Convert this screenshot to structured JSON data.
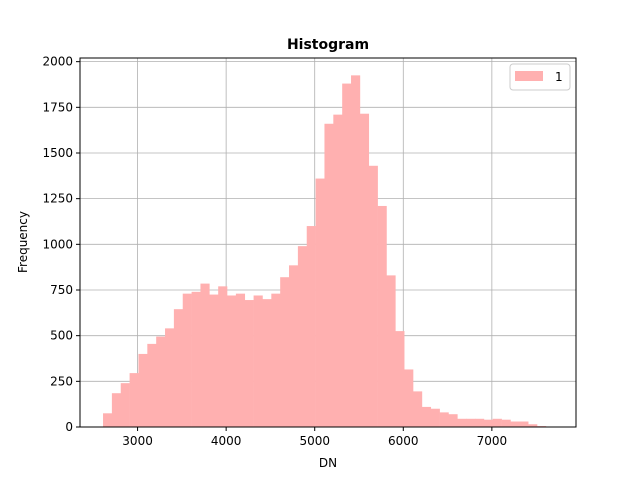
{
  "chart_data": {
    "type": "bar",
    "title": "Histogram",
    "xlabel": "DN",
    "ylabel": "Frequency",
    "xlim": [
      2350,
      7950
    ],
    "ylim": [
      0,
      2020
    ],
    "x_ticks": [
      3000,
      4000,
      5000,
      6000,
      7000
    ],
    "y_ticks": [
      0,
      250,
      500,
      750,
      1000,
      1250,
      1500,
      1750,
      2000
    ],
    "grid": true,
    "legend_position": "top-right",
    "color": "#ffb0b0",
    "series": [
      {
        "name": "1",
        "bin_start": 2610,
        "bin_width": 100,
        "values": [
          75,
          185,
          240,
          295,
          400,
          455,
          495,
          540,
          645,
          730,
          740,
          785,
          725,
          770,
          720,
          730,
          695,
          720,
          700,
          730,
          820,
          885,
          990,
          1100,
          1360,
          1660,
          1710,
          1880,
          1925,
          1715,
          1430,
          1210,
          830,
          525,
          315,
          195,
          110,
          100,
          80,
          70,
          45,
          45,
          45,
          40,
          45,
          40,
          30,
          30,
          15,
          5
        ]
      }
    ]
  }
}
